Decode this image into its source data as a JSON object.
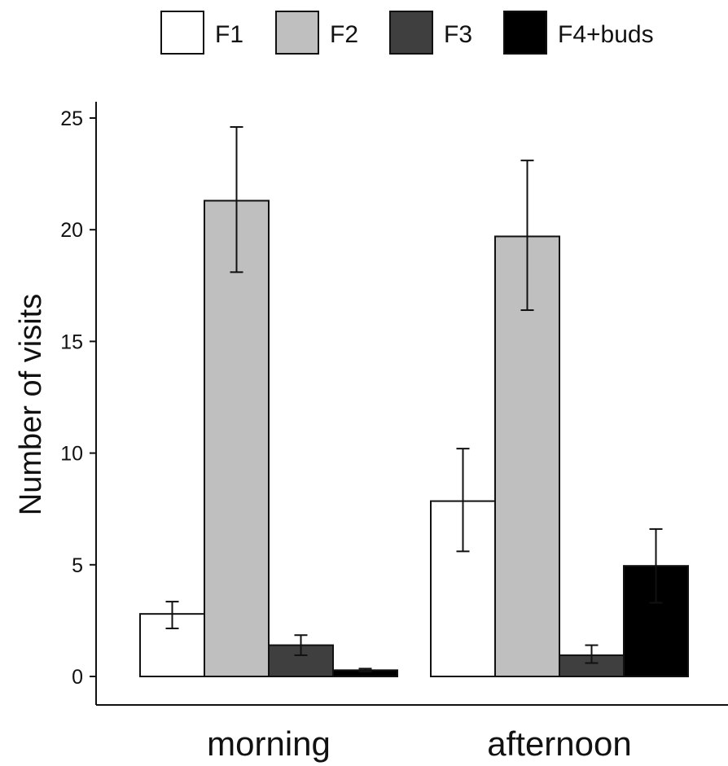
{
  "chart_data": {
    "type": "bar",
    "title": "",
    "xlabel": "",
    "ylabel": "Number of visits",
    "ylim": [
      0,
      25
    ],
    "yticks": [
      "0",
      "5",
      "10",
      "15",
      "20",
      "25"
    ],
    "categories": [
      "morning",
      "afternoon"
    ],
    "grid": false,
    "legend_position": "top",
    "series": [
      {
        "name": "F1",
        "color": "#ffffff",
        "values": [
          2.8,
          7.85
        ],
        "error_low": [
          2.15,
          5.6
        ],
        "error_high": [
          3.35,
          10.2
        ]
      },
      {
        "name": "F2",
        "color": "#bfbfbf",
        "values": [
          21.3,
          19.7
        ],
        "error_low": [
          18.1,
          16.4
        ],
        "error_high": [
          24.6,
          23.1
        ]
      },
      {
        "name": "F3",
        "color": "#3f3f3f",
        "values": [
          1.4,
          0.95
        ],
        "error_low": [
          0.95,
          0.6
        ],
        "error_high": [
          1.85,
          1.4
        ]
      },
      {
        "name": "F4+buds",
        "color": "#000000",
        "values": [
          0.28,
          4.95
        ],
        "error_low": [
          0.22,
          3.3
        ],
        "error_high": [
          0.35,
          6.6
        ]
      }
    ]
  }
}
